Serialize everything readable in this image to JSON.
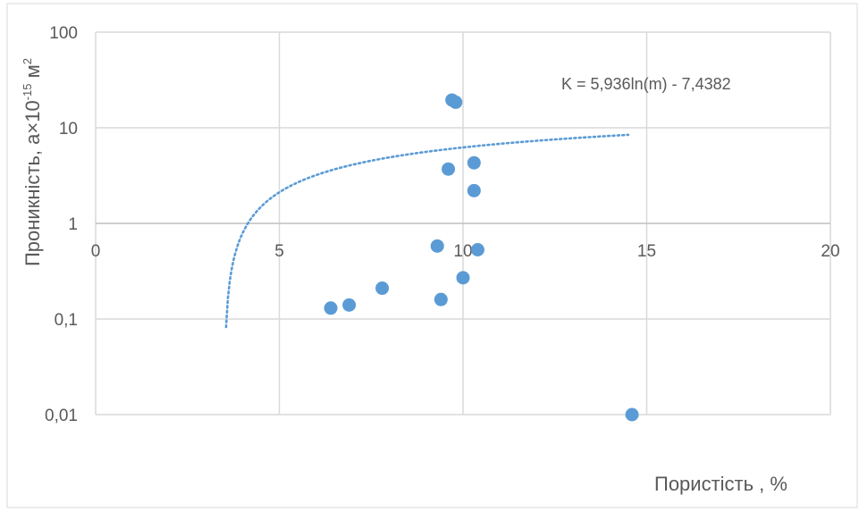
{
  "chart_data": {
    "type": "scatter",
    "xlabel": "Пористість , %",
    "ylabel": "Проникність, а×10",
    "ylabel_exp": "-15",
    "ylabel_unit": " м",
    "ylabel_unit_exp": "2",
    "xlim": [
      0,
      20
    ],
    "ylim": [
      0.01,
      100
    ],
    "y_scale": "log",
    "x_ticks": [
      "0",
      "5",
      "10",
      "15",
      "20"
    ],
    "y_ticks": [
      "0,01",
      "0,1",
      "1",
      "10",
      "100"
    ],
    "grid": true,
    "series": [
      {
        "x": [
          6.4,
          6.9,
          7.8,
          9.3,
          9.4,
          9.6,
          9.7,
          9.8,
          10.0,
          10.3,
          10.3,
          10.4,
          14.6
        ],
        "y": [
          0.13,
          0.14,
          0.21,
          0.58,
          0.16,
          3.7,
          19.5,
          18.5,
          0.27,
          4.3,
          2.2,
          0.53,
          0.01
        ],
        "color": "#5b9bd5"
      }
    ],
    "trendline": {
      "label": "K = 5,936ln(m) - 7,4382",
      "a": 5.936,
      "b": -7.4382,
      "x_range": [
        3.55,
        14.5
      ],
      "style": "dotted",
      "color": "#5b9bd5"
    }
  }
}
